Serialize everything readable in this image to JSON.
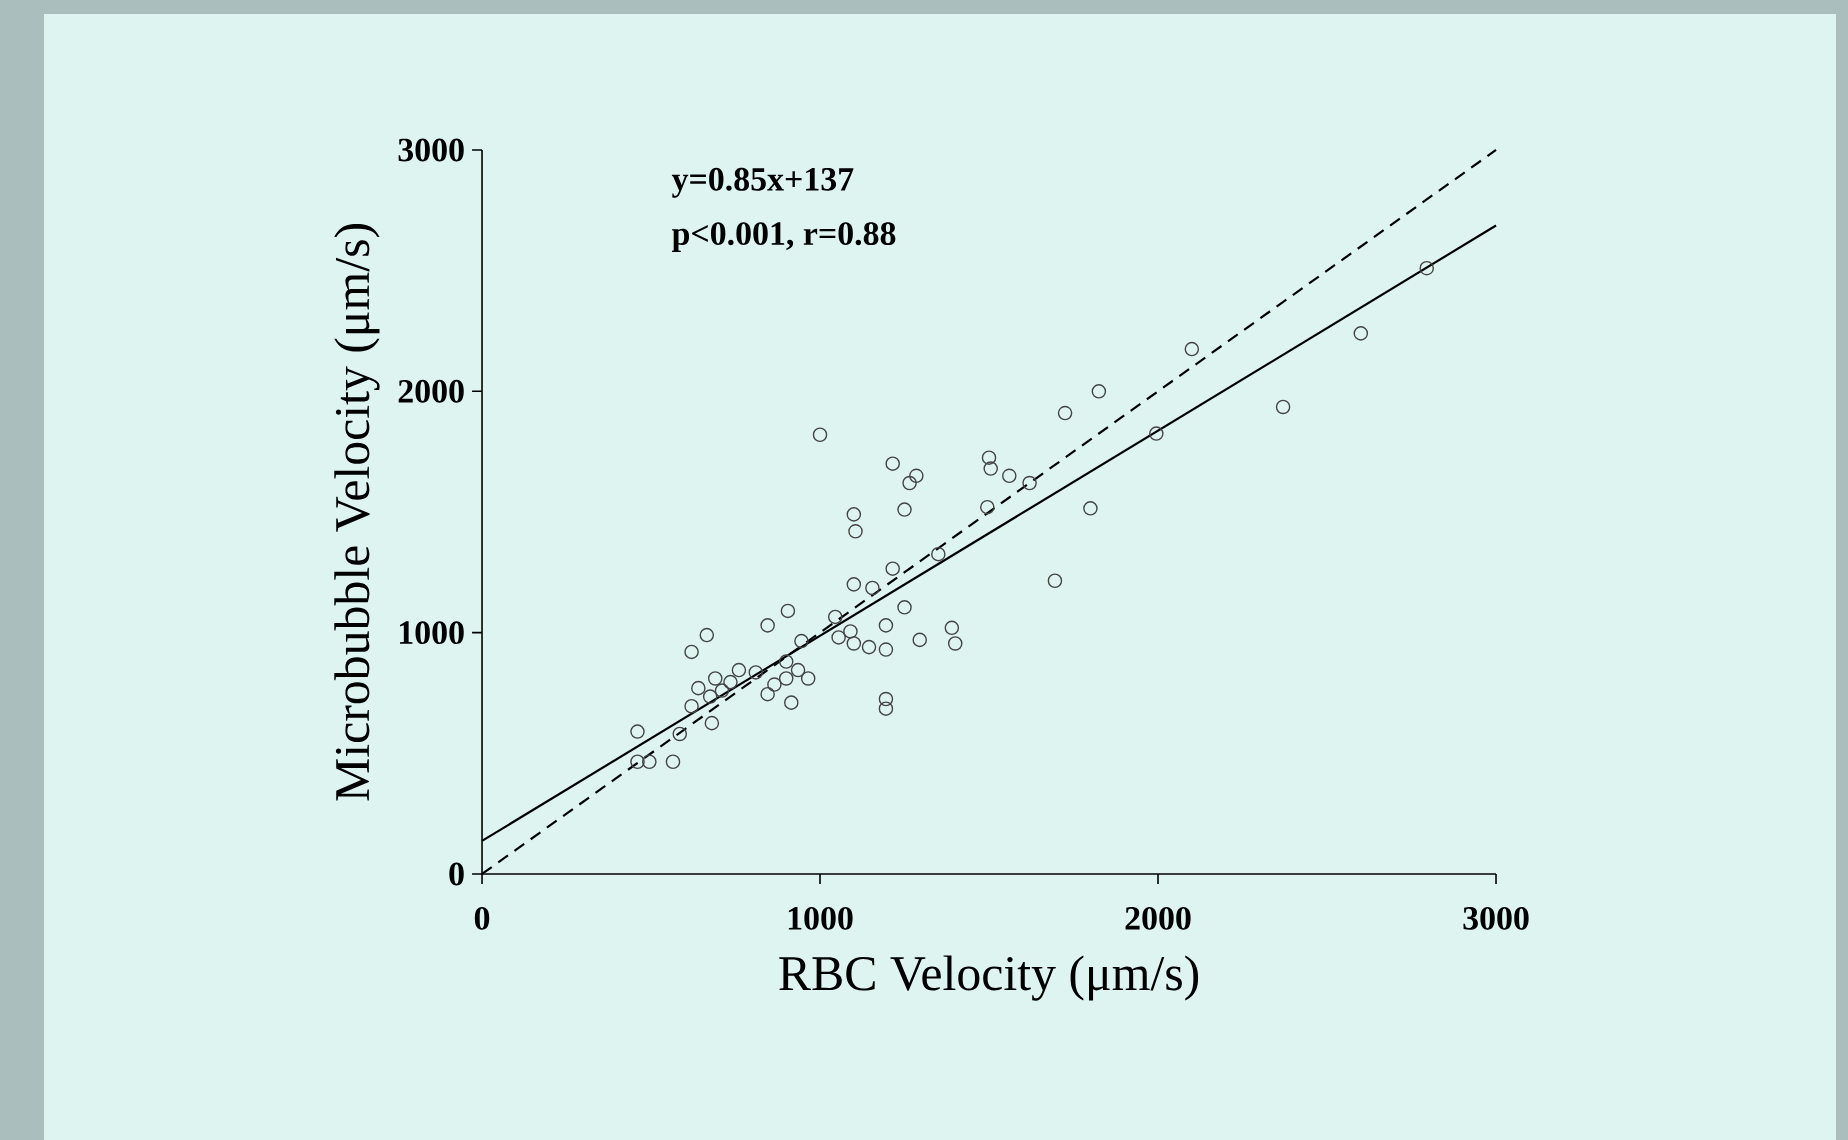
{
  "chart_data": {
    "type": "scatter",
    "xlabel": "RBC Velocity (μm/s)",
    "ylabel": "Microbubble Velocity (μm/s)",
    "annotations": [
      "y=0.85x+137",
      "p<0.001, r=0.88"
    ],
    "xlim": [
      0,
      3000
    ],
    "ylim": [
      0,
      3000
    ],
    "xticks": [
      0,
      1000,
      2000,
      3000
    ],
    "yticks": [
      0,
      1000,
      2000,
      3000
    ],
    "grid": false,
    "series": [
      {
        "marker": "circle",
        "color": "#444444",
        "x": [
          1000,
          1215,
          1285,
          1265,
          1250,
          1100,
          1105,
          1500,
          1505,
          1560,
          1620,
          1495,
          1725,
          1825,
          1800,
          1695,
          1995,
          2100,
          2370,
          2600,
          2795,
          1350,
          1100,
          1155,
          1215,
          1250,
          1195,
          1195,
          1145,
          1295,
          1390,
          1400,
          1195,
          1195,
          1045,
          1055,
          1090,
          1100,
          905,
          845,
          945,
          900,
          900,
          845,
          915,
          965,
          935,
          665,
          620,
          760,
          690,
          640,
          675,
          710,
          735,
          680,
          585,
          565,
          460,
          460,
          495,
          620,
          865,
          810
        ],
        "values": [
          1820,
          1700,
          1650,
          1620,
          1510,
          1490,
          1420,
          1725,
          1680,
          1650,
          1620,
          1520,
          1910,
          2000,
          1515,
          1215,
          1825,
          2175,
          1935,
          2240,
          2510,
          1325,
          1200,
          1185,
          1265,
          1105,
          1030,
          930,
          940,
          970,
          1020,
          955,
          725,
          685,
          1065,
          980,
          1005,
          955,
          1090,
          1030,
          965,
          880,
          810,
          745,
          710,
          810,
          845,
          990,
          920,
          845,
          810,
          770,
          735,
          760,
          795,
          625,
          580,
          465,
          590,
          465,
          465,
          695,
          785,
          835
        ]
      },
      {
        "type": "line",
        "marker": "none",
        "line_style": "solid",
        "color": "#000000",
        "x": [
          0,
          3000
        ],
        "values": [
          137,
          2687
        ]
      },
      {
        "type": "line",
        "marker": "none",
        "line_style": "dashed",
        "color": "#000000",
        "x": [
          0,
          3000
        ],
        "values": [
          0,
          3000
        ]
      }
    ]
  }
}
